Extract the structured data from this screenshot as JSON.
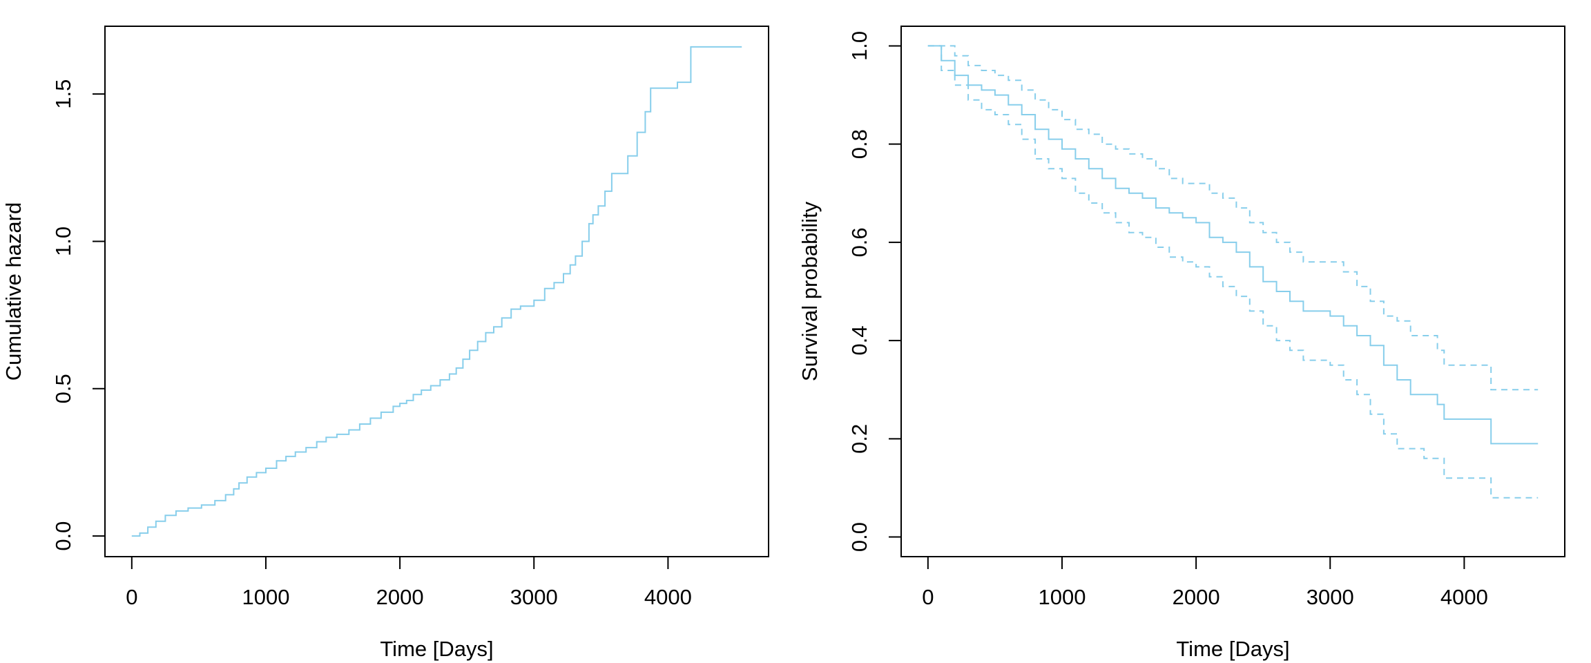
{
  "chart_data": [
    {
      "type": "line",
      "title": "",
      "xlabel": "Time [Days]",
      "ylabel": "Cumulative hazard",
      "xlim": [
        -200,
        4750
      ],
      "ylim": [
        -0.07,
        1.73
      ],
      "xticks": [
        0,
        1000,
        2000,
        3000,
        4000
      ],
      "xtick_labels": [
        "0",
        "1000",
        "2000",
        "3000",
        "4000"
      ],
      "yticks": [
        0.0,
        0.5,
        1.0,
        1.5
      ],
      "ytick_labels": [
        "0.0",
        "0.5",
        "1.0",
        "1.5"
      ],
      "grid": false,
      "legend": "none",
      "step": true,
      "series": [
        {
          "style": "solid",
          "color": "#87CEEB",
          "x": [
            0,
            60,
            120,
            180,
            250,
            330,
            420,
            520,
            620,
            700,
            760,
            800,
            860,
            930,
            1000,
            1080,
            1150,
            1220,
            1300,
            1380,
            1450,
            1530,
            1620,
            1700,
            1780,
            1860,
            1950,
            2000,
            2050,
            2100,
            2160,
            2230,
            2300,
            2370,
            2420,
            2470,
            2520,
            2580,
            2640,
            2700,
            2760,
            2830,
            2900,
            3000,
            3080,
            3150,
            3220,
            3270,
            3310,
            3360,
            3410,
            3440,
            3480,
            3530,
            3580,
            3700,
            3770,
            3830,
            3870,
            4070,
            4170,
            4550
          ],
          "y": [
            0.0,
            0.01,
            0.03,
            0.05,
            0.07,
            0.085,
            0.095,
            0.105,
            0.12,
            0.14,
            0.16,
            0.18,
            0.2,
            0.215,
            0.23,
            0.255,
            0.27,
            0.285,
            0.3,
            0.32,
            0.335,
            0.345,
            0.36,
            0.38,
            0.4,
            0.42,
            0.44,
            0.45,
            0.46,
            0.48,
            0.495,
            0.51,
            0.53,
            0.55,
            0.57,
            0.6,
            0.63,
            0.66,
            0.69,
            0.71,
            0.74,
            0.77,
            0.78,
            0.8,
            0.84,
            0.86,
            0.89,
            0.92,
            0.95,
            1.0,
            1.06,
            1.09,
            1.12,
            1.17,
            1.23,
            1.29,
            1.37,
            1.44,
            1.52,
            1.54,
            1.66,
            1.66
          ]
        }
      ]
    },
    {
      "type": "line",
      "title": "",
      "xlabel": "Time [Days]",
      "ylabel": "Survival probability",
      "xlim": [
        -200,
        4750
      ],
      "ylim": [
        -0.04,
        1.04
      ],
      "xticks": [
        0,
        1000,
        2000,
        3000,
        4000
      ],
      "xtick_labels": [
        "0",
        "1000",
        "2000",
        "3000",
        "4000"
      ],
      "yticks": [
        0.0,
        0.2,
        0.4,
        0.6,
        0.8,
        1.0
      ],
      "ytick_labels": [
        "0.0",
        "0.2",
        "0.4",
        "0.6",
        "0.8",
        "1.0"
      ],
      "grid": false,
      "legend": "none",
      "step": true,
      "series": [
        {
          "style": "solid",
          "color": "#87CEEB",
          "x": [
            0,
            100,
            200,
            300,
            400,
            500,
            600,
            700,
            800,
            900,
            1000,
            1100,
            1200,
            1300,
            1400,
            1500,
            1600,
            1700,
            1800,
            1900,
            2000,
            2100,
            2200,
            2300,
            2400,
            2500,
            2600,
            2700,
            2800,
            3000,
            3100,
            3200,
            3300,
            3400,
            3500,
            3600,
            3700,
            3800,
            3850,
            4200,
            4550
          ],
          "y": [
            1.0,
            0.97,
            0.94,
            0.92,
            0.91,
            0.9,
            0.88,
            0.86,
            0.83,
            0.81,
            0.79,
            0.77,
            0.75,
            0.73,
            0.71,
            0.7,
            0.69,
            0.67,
            0.66,
            0.65,
            0.64,
            0.61,
            0.6,
            0.58,
            0.55,
            0.52,
            0.5,
            0.48,
            0.46,
            0.45,
            0.43,
            0.41,
            0.39,
            0.35,
            0.32,
            0.29,
            0.29,
            0.27,
            0.24,
            0.19,
            0.19
          ]
        },
        {
          "style": "dashed",
          "color": "#87CEEB",
          "x": [
            0,
            100,
            200,
            300,
            400,
            500,
            600,
            700,
            800,
            900,
            1000,
            1100,
            1200,
            1300,
            1400,
            1500,
            1600,
            1700,
            1800,
            1900,
            2000,
            2100,
            2200,
            2300,
            2400,
            2500,
            2600,
            2700,
            2800,
            3000,
            3100,
            3200,
            3300,
            3400,
            3500,
            3600,
            3800,
            3850,
            4200,
            4550
          ],
          "y": [
            1.0,
            1.0,
            0.98,
            0.96,
            0.95,
            0.94,
            0.93,
            0.91,
            0.89,
            0.87,
            0.85,
            0.83,
            0.82,
            0.8,
            0.79,
            0.78,
            0.77,
            0.75,
            0.73,
            0.72,
            0.72,
            0.7,
            0.69,
            0.67,
            0.64,
            0.62,
            0.6,
            0.58,
            0.56,
            0.56,
            0.54,
            0.51,
            0.48,
            0.45,
            0.44,
            0.41,
            0.38,
            0.35,
            0.3,
            0.3
          ]
        },
        {
          "style": "dashed",
          "color": "#87CEEB",
          "x": [
            0,
            100,
            200,
            300,
            400,
            500,
            600,
            700,
            800,
            900,
            1000,
            1100,
            1200,
            1300,
            1400,
            1500,
            1600,
            1700,
            1800,
            1900,
            2000,
            2100,
            2200,
            2300,
            2400,
            2500,
            2600,
            2700,
            2800,
            3000,
            3100,
            3200,
            3300,
            3400,
            3500,
            3600,
            3700,
            3850,
            4200,
            4550
          ],
          "y": [
            1.0,
            0.95,
            0.92,
            0.89,
            0.87,
            0.86,
            0.84,
            0.81,
            0.77,
            0.75,
            0.73,
            0.7,
            0.68,
            0.66,
            0.64,
            0.62,
            0.61,
            0.59,
            0.57,
            0.56,
            0.55,
            0.53,
            0.51,
            0.49,
            0.46,
            0.43,
            0.4,
            0.38,
            0.36,
            0.35,
            0.32,
            0.29,
            0.25,
            0.21,
            0.18,
            0.18,
            0.16,
            0.12,
            0.08,
            0.08
          ]
        }
      ]
    }
  ]
}
